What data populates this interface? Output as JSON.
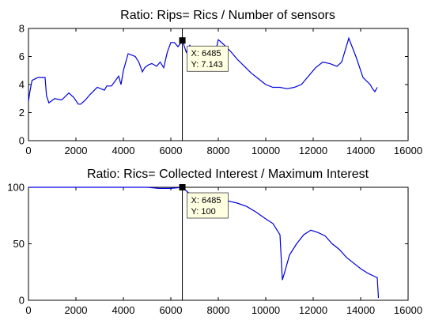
{
  "chart_data": [
    {
      "type": "line",
      "title": "Ratio: Rips= Rics / Number of sensors",
      "xlabel": "",
      "ylabel": "",
      "xlim": [
        0,
        16000
      ],
      "ylim": [
        0,
        8
      ],
      "xticks": [
        0,
        2000,
        4000,
        6000,
        8000,
        10000,
        12000,
        14000,
        16000
      ],
      "yticks": [
        0,
        2,
        4,
        6,
        8
      ],
      "grid": false,
      "series": [
        {
          "color": "#0000dd",
          "x": [
            0,
            60,
            150,
            400,
            700,
            760,
            860,
            1100,
            1400,
            1700,
            1900,
            2100,
            2200,
            2400,
            2600,
            2900,
            3200,
            3300,
            3500,
            3800,
            3900,
            4000,
            4200,
            4350,
            4500,
            4650,
            4800,
            4900,
            5050,
            5200,
            5400,
            5550,
            5700,
            5850,
            6000,
            6150,
            6300,
            6485,
            6650,
            6800,
            7000,
            7200,
            7400,
            7600,
            7800,
            8000,
            8200,
            8500,
            8800,
            9100,
            9400,
            9700,
            10000,
            10300,
            10600,
            10900,
            11200,
            11500,
            11800,
            12100,
            12400,
            12700,
            13000,
            13200,
            13500,
            13800,
            14100,
            14400,
            14500,
            14600,
            14700
          ],
          "y": [
            2.8,
            3.5,
            4.3,
            4.5,
            4.5,
            3.2,
            2.7,
            3.0,
            2.9,
            3.4,
            3.1,
            2.6,
            2.6,
            2.9,
            3.3,
            3.8,
            3.6,
            3.9,
            3.9,
            4.6,
            4.0,
            5.0,
            6.2,
            6.1,
            6.0,
            5.6,
            4.9,
            5.2,
            5.4,
            5.5,
            5.3,
            5.6,
            5.2,
            6.3,
            7.0,
            7.0,
            6.7,
            7.143,
            6.3,
            6.8,
            6.2,
            5.9,
            6.3,
            6.0,
            5.7,
            7.2,
            6.9,
            6.4,
            5.8,
            5.3,
            4.8,
            4.4,
            4.0,
            3.8,
            3.8,
            3.7,
            3.8,
            4.0,
            4.6,
            5.2,
            5.6,
            5.5,
            5.3,
            5.6,
            7.3,
            6.0,
            4.5,
            4.0,
            3.7,
            3.5,
            3.8
          ]
        }
      ],
      "datatip": {
        "x_label": "X: 6485",
        "y_label": "Y: 7.143",
        "x": 6485,
        "y": 7.143
      }
    },
    {
      "type": "line",
      "title": "Ratio: Rics= Collected Interest / Maximum Interest",
      "xlabel": "",
      "ylabel": "",
      "xlim": [
        0,
        16000
      ],
      "ylim": [
        0,
        100
      ],
      "xticks": [
        0,
        2000,
        4000,
        6000,
        8000,
        10000,
        12000,
        14000,
        16000
      ],
      "yticks": [
        0,
        50,
        100
      ],
      "grid": false,
      "series": [
        {
          "color": "#0000dd",
          "x": [
            0,
            500,
            1000,
            1500,
            2000,
            2500,
            3000,
            3500,
            4000,
            4500,
            5000,
            5500,
            6000,
            6485,
            6800,
            7200,
            7600,
            8000,
            8400,
            8800,
            9200,
            9600,
            10000,
            10300,
            10600,
            10700,
            10800,
            11000,
            11300,
            11600,
            11900,
            12200,
            12500,
            12800,
            13100,
            13400,
            13700,
            14000,
            14300,
            14600,
            14700,
            14750
          ],
          "y": [
            100,
            100,
            100,
            100,
            100,
            100,
            100,
            100,
            100,
            100,
            100,
            99,
            99,
            100,
            94,
            92,
            90,
            92,
            88,
            86,
            83,
            78,
            72,
            68,
            58,
            18,
            25,
            40,
            50,
            58,
            62,
            60,
            57,
            50,
            45,
            38,
            33,
            28,
            24,
            21,
            20,
            2
          ]
        }
      ],
      "datatip": {
        "x_label": "X: 6485",
        "y_label": "Y: 100",
        "x": 6485,
        "y": 100
      }
    }
  ]
}
